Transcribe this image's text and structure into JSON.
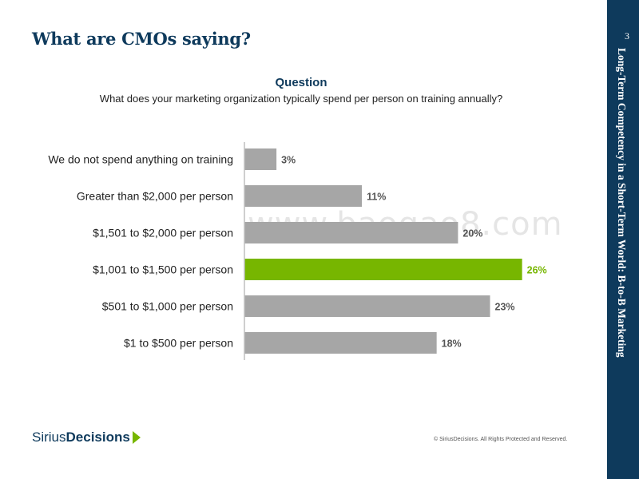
{
  "page": {
    "title": "What are CMOs saying?",
    "page_number": "3",
    "side_title": "Long-Term Competency in a Short-Term World: B-to-B Marketing",
    "watermark": "www.baogao8.com",
    "logo_part1": "Sirius",
    "logo_part2": "Decisions",
    "copyright": "© SiriusDecisions. All Rights Protected and Reserved."
  },
  "question": {
    "heading": "Question",
    "text": "What does your marketing organization typically spend per person on training annually?"
  },
  "colors": {
    "bar_default": "#a6a6a6",
    "bar_highlight": "#77b600",
    "label_default": "#555555",
    "label_highlight": "#77b600",
    "axis": "#bfbfbf",
    "navy": "#0e3a5c"
  },
  "chart_data": {
    "type": "bar",
    "orientation": "horizontal",
    "title": "What does your marketing organization typically spend per person on training annually?",
    "categories": [
      "We do not spend anything on training",
      "Greater than $2,000 per person",
      "$1,501 to $2,000 per person",
      "$1,001 to $1,500 per person",
      "$501 to $1,000 per person",
      "$1 to $500 per person"
    ],
    "values": [
      3,
      11,
      20,
      26,
      23,
      18
    ],
    "value_labels": [
      "3%",
      "11%",
      "20%",
      "26%",
      "23%",
      "18%"
    ],
    "highlight_index": 3,
    "unit": "%",
    "xlim": [
      0,
      27
    ],
    "grid": false,
    "legend": "none"
  }
}
